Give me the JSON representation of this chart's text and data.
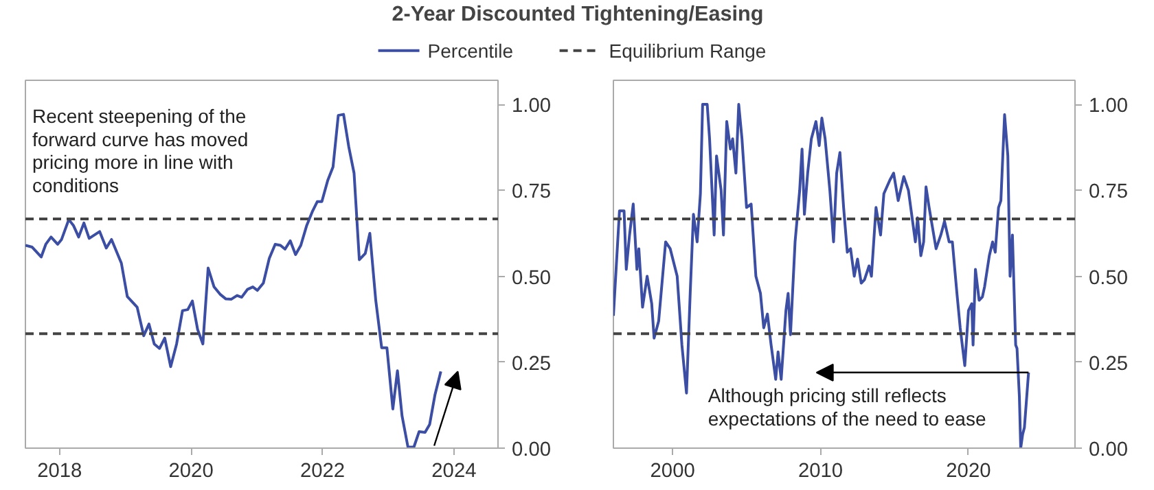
{
  "chart_data": [
    {
      "type": "line",
      "title": "2-Year Discounted Tightening/Easing",
      "legend": "top",
      "grid": false,
      "xlim": [
        2017.48,
        2024.67
      ],
      "xticks": [
        2018,
        2020,
        2022,
        2024
      ],
      "ylim": [
        0,
        1.07
      ],
      "yticks": [
        {
          "value": 0,
          "label": "0.00"
        },
        {
          "value": 0.25,
          "label": "0.25"
        },
        {
          "value": 0.5,
          "label": "0.50"
        },
        {
          "value": 0.75,
          "label": "0.75"
        },
        {
          "value": 1,
          "label": "1.00"
        }
      ],
      "series": [
        {
          "name": "Percentile",
          "color": "#3b4ea3",
          "x": [
            2017.48,
            2017.58,
            2017.72,
            2017.79,
            2017.87,
            2017.97,
            2018.03,
            2018.14,
            2018.21,
            2018.29,
            2018.37,
            2018.45,
            2018.61,
            2018.71,
            2018.79,
            2018.94,
            2019.03,
            2019.18,
            2019.28,
            2019.36,
            2019.44,
            2019.52,
            2019.6,
            2019.69,
            2019.78,
            2019.87,
            2019.95,
            2020.02,
            2020.1,
            2020.18,
            2020.26,
            2020.35,
            2020.44,
            2020.53,
            2020.61,
            2020.7,
            2020.77,
            2020.86,
            2020.94,
            2021.01,
            2021.1,
            2021.19,
            2021.28,
            2021.36,
            2021.43,
            2021.51,
            2021.59,
            2021.67,
            2021.76,
            2021.85,
            2021.92,
            2021.99,
            2022.08,
            2022.16,
            2022.24,
            2022.32,
            2022.4,
            2022.48,
            2022.56,
            2022.65,
            2022.72,
            2022.81,
            2022.9,
            2022.98,
            2023.07,
            2023.14,
            2023.21,
            2023.3,
            2023.39,
            2023.47,
            2023.56,
            2023.63,
            2023.71,
            2023.8
          ],
          "values": [
            0.59,
            0.585,
            0.556,
            0.593,
            0.614,
            0.593,
            0.607,
            0.665,
            0.648,
            0.614,
            0.655,
            0.61,
            0.63,
            0.582,
            0.607,
            0.538,
            0.441,
            0.41,
            0.327,
            0.361,
            0.303,
            0.29,
            0.32,
            0.237,
            0.303,
            0.4,
            0.403,
            0.428,
            0.345,
            0.303,
            0.524,
            0.469,
            0.448,
            0.434,
            0.433,
            0.444,
            0.439,
            0.462,
            0.469,
            0.459,
            0.48,
            0.552,
            0.593,
            0.59,
            0.579,
            0.603,
            0.563,
            0.59,
            0.648,
            0.69,
            0.717,
            0.717,
            0.779,
            0.818,
            0.968,
            0.971,
            0.876,
            0.8,
            0.548,
            0.566,
            0.625,
            0.43,
            0.292,
            0.292,
            0.114,
            0.225,
            0.094,
            0.003,
            0.003,
            0.048,
            0.046,
            0.069,
            0.154,
            0.223
          ]
        }
      ],
      "ref_lines": [
        {
          "axis": "y",
          "value": 0.667,
          "label": "Equilibrium Range",
          "color": "#444444",
          "line_style": "dashed"
        },
        {
          "axis": "y",
          "value": 0.333,
          "color": "#444444",
          "line_style": "dashed"
        }
      ],
      "annotations": [
        "Recent steepening of the forward curve has moved pricing more in line with conditions"
      ]
    },
    {
      "type": "line",
      "grid": false,
      "xlim": [
        1996.0,
        2027.2
      ],
      "xticks": [
        2000,
        2010,
        2020
      ],
      "ylim": [
        0,
        1.07
      ],
      "yticks": [
        {
          "value": 0,
          "label": "0.00"
        },
        {
          "value": 0.25,
          "label": "0.25"
        },
        {
          "value": 0.5,
          "label": "0.50"
        },
        {
          "value": 0.75,
          "label": "0.75"
        },
        {
          "value": 1,
          "label": "1.00"
        }
      ],
      "series": [
        {
          "color": "#3b4ea3",
          "x": [
            1996.0,
            1996.41,
            1996.72,
            1996.87,
            1997.09,
            1997.34,
            1997.59,
            1997.72,
            1997.97,
            1998.28,
            1998.59,
            1998.75,
            1999.06,
            1999.53,
            1999.84,
            2000.31,
            2000.63,
            2000.94,
            2001.19,
            2001.41,
            2001.66,
            2001.88,
            2002.03,
            2002.34,
            2002.5,
            2002.81,
            2002.97,
            2003.28,
            2003.44,
            2003.66,
            2003.91,
            2004.06,
            2004.28,
            2004.47,
            2004.69,
            2005.0,
            2005.31,
            2005.63,
            2005.94,
            2006.16,
            2006.41,
            2006.66,
            2006.97,
            2007.13,
            2007.34,
            2007.66,
            2007.81,
            2007.97,
            2008.28,
            2008.59,
            2008.75,
            2008.91,
            2009.13,
            2009.38,
            2009.69,
            2009.91,
            2010.09,
            2010.31,
            2010.63,
            2010.88,
            2011.09,
            2011.31,
            2011.56,
            2011.81,
            2012.03,
            2012.28,
            2012.5,
            2012.75,
            2012.97,
            2013.28,
            2013.44,
            2013.75,
            2014.06,
            2014.28,
            2014.69,
            2014.94,
            2015.25,
            2015.63,
            2015.94,
            2016.41,
            2016.56,
            2016.78,
            2016.97,
            2017.13,
            2017.34,
            2017.81,
            2018.13,
            2018.38,
            2018.69,
            2018.91,
            2019.22,
            2019.44,
            2019.75,
            2020.0,
            2020.22,
            2020.31,
            2020.47,
            2020.72,
            2020.94,
            2021.09,
            2021.41,
            2021.63,
            2021.81,
            2022.03,
            2022.19,
            2022.44,
            2022.66,
            2022.81,
            2022.97,
            2023.19,
            2023.28,
            2023.44,
            2023.53,
            2023.66,
            2023.78,
            2024.06
          ],
          "values": [
            0.385,
            0.69,
            0.69,
            0.52,
            0.62,
            0.71,
            0.52,
            0.58,
            0.41,
            0.5,
            0.42,
            0.32,
            0.37,
            0.6,
            0.58,
            0.5,
            0.3,
            0.16,
            0.45,
            0.68,
            0.6,
            0.74,
            1.0,
            1.0,
            0.9,
            0.62,
            0.85,
            0.75,
            0.62,
            0.95,
            0.87,
            0.9,
            0.8,
            1.0,
            0.9,
            0.7,
            0.71,
            0.5,
            0.45,
            0.35,
            0.39,
            0.3,
            0.2,
            0.28,
            0.2,
            0.4,
            0.45,
            0.33,
            0.6,
            0.75,
            0.87,
            0.68,
            0.8,
            0.9,
            0.95,
            0.88,
            0.96,
            0.9,
            0.75,
            0.6,
            0.8,
            0.86,
            0.7,
            0.57,
            0.58,
            0.5,
            0.55,
            0.48,
            0.49,
            0.53,
            0.5,
            0.7,
            0.62,
            0.74,
            0.78,
            0.8,
            0.72,
            0.79,
            0.75,
            0.6,
            0.67,
            0.56,
            0.6,
            0.76,
            0.7,
            0.58,
            0.62,
            0.66,
            0.6,
            0.6,
            0.45,
            0.35,
            0.24,
            0.4,
            0.42,
            0.3,
            0.52,
            0.43,
            0.44,
            0.47,
            0.56,
            0.6,
            0.57,
            0.7,
            0.72,
            0.97,
            0.85,
            0.5,
            0.62,
            0.3,
            0.29,
            0.15,
            0.0,
            0.04,
            0.06,
            0.22
          ]
        }
      ],
      "ref_lines": [
        {
          "axis": "y",
          "value": 0.667,
          "color": "#444444",
          "line_style": "dashed"
        },
        {
          "axis": "y",
          "value": 0.333,
          "color": "#444444",
          "line_style": "dashed"
        }
      ],
      "annotations": [
        "Although pricing still reflects expectations of the need to ease"
      ]
    }
  ]
}
